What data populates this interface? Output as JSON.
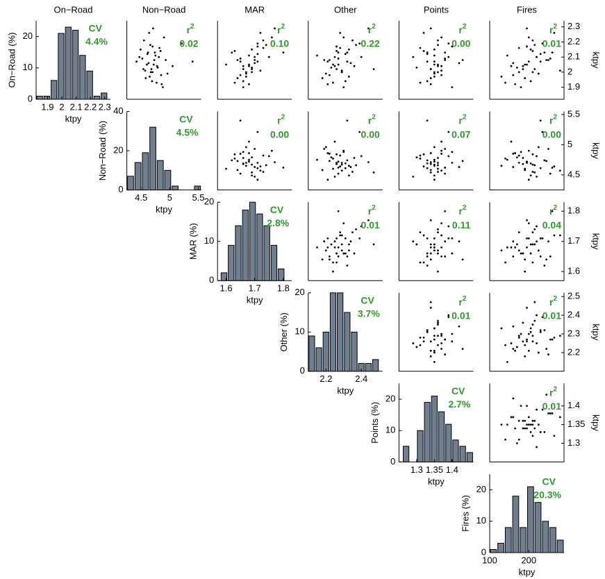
{
  "chart_data": {
    "type": "scatter-matrix",
    "x_label": "ktpy",
    "y_label": "ktpy",
    "cv_label": "CV",
    "stat_label": "r",
    "stat_sup": "2",
    "bar_color": "#6f7f90",
    "stat_color": "#2e9a2a",
    "point_color": "#000000",
    "variables": [
      {
        "name": "On−Road",
        "hist_ylabel": "On−Road (%)",
        "lim": [
          1.82,
          2.34
        ],
        "xticks": [
          1.9,
          2,
          2.1,
          2.2,
          2.3
        ],
        "yticks": [
          1.9,
          2,
          2.1,
          2.2,
          2.3
        ],
        "bins": [
          1.82,
          1.87,
          1.92,
          1.97,
          2.02,
          2.07,
          2.12,
          2.17,
          2.22,
          2.27,
          2.32
        ],
        "counts": [
          1,
          1,
          6,
          21,
          23,
          22,
          14,
          9,
          1,
          2
        ],
        "hist_ylim": [
          0,
          25
        ],
        "hist_yticks": [
          0,
          10,
          20
        ],
        "cv": 4.4,
        "cv_text": "4.4%",
        "r2": [
          0.02,
          0.1,
          0.22,
          0.0,
          0.01
        ],
        "r2_labels": [
          "0.02",
          "0.10",
          "0.22",
          "0.00",
          "0.01"
        ]
      },
      {
        "name": "Non−Road",
        "hist_ylabel": "Non−Road (%)",
        "lim": [
          4.25,
          5.55
        ],
        "xticks": [
          4.5,
          5,
          5.5
        ],
        "yticks": [
          4.5,
          5,
          5.5
        ],
        "bins": [
          4.25,
          4.38,
          4.51,
          4.64,
          4.77,
          4.9,
          5.03,
          5.16,
          5.29,
          5.42,
          5.55
        ],
        "counts": [
          7,
          14,
          19,
          32,
          15,
          10,
          2,
          0,
          0,
          2
        ],
        "hist_ylim": [
          0,
          40
        ],
        "hist_yticks": [
          0,
          20,
          40
        ],
        "cv": 4.5,
        "cv_text": "4.5%",
        "r2": [
          0.0,
          0.0,
          0.07,
          0.0
        ],
        "r2_labels": [
          "0.00",
          "0.00",
          "0.07",
          "0.00"
        ]
      },
      {
        "name": "MAR",
        "hist_ylabel": "MAR (%)",
        "lim": [
          1.57,
          1.83
        ],
        "xticks": [
          1.6,
          1.7,
          1.8
        ],
        "yticks": [
          1.6,
          1.7,
          1.8
        ],
        "bins": [
          1.58,
          1.605,
          1.63,
          1.655,
          1.68,
          1.705,
          1.73,
          1.755,
          1.78,
          1.805
        ],
        "counts": [
          2,
          9,
          14,
          18,
          20,
          17,
          14,
          9,
          3
        ],
        "hist_ylim": [
          0,
          20
        ],
        "hist_yticks": [
          0,
          10,
          20
        ],
        "cv": 2.8,
        "cv_text": "2.8%",
        "r2": [
          0.01,
          0.11,
          0.04
        ],
        "r2_labels": [
          "0.01",
          "0.11",
          "0.04"
        ]
      },
      {
        "name": "Other",
        "hist_ylabel": "Other (%)",
        "lim": [
          2.1,
          2.52
        ],
        "xticks": [
          2.2,
          2.4
        ],
        "yticks": [
          2.2,
          2.3,
          2.4,
          2.5
        ],
        "bins": [
          2.1,
          2.14,
          2.18,
          2.22,
          2.26,
          2.3,
          2.34,
          2.38,
          2.42,
          2.46,
          2.5
        ],
        "counts": [
          9,
          6,
          10,
          20,
          20,
          15,
          10,
          2,
          2,
          3
        ],
        "hist_ylim": [
          0,
          20
        ],
        "hist_yticks": [
          0,
          10,
          20
        ],
        "cv": 3.7,
        "cv_text": "3.7%",
        "r2": [
          0.01,
          0.01
        ],
        "r2_labels": [
          "0.01",
          "0.01"
        ]
      },
      {
        "name": "Points",
        "hist_ylabel": "Points (%)",
        "lim": [
          1.25,
          1.46
        ],
        "xticks": [
          1.3,
          1.35,
          1.4
        ],
        "yticks": [
          1.3,
          1.35,
          1.4
        ],
        "bins": [
          1.26,
          1.28,
          1.3,
          1.32,
          1.34,
          1.36,
          1.38,
          1.4,
          1.42,
          1.44,
          1.46
        ],
        "counts": [
          5,
          0,
          10,
          19,
          21,
          16,
          12,
          7,
          5,
          3
        ],
        "hist_ylim": [
          0,
          25
        ],
        "hist_yticks": [
          0,
          10,
          20
        ],
        "cv": 2.7,
        "cv_text": "2.7%",
        "r2": [
          0.01
        ],
        "r2_labels": [
          "0.01"
        ]
      },
      {
        "name": "Fires",
        "hist_ylabel": "Fires (%)",
        "lim": [
          100,
          290
        ],
        "xticks": [
          100,
          200
        ],
        "bins": [
          100,
          119,
          138,
          157,
          176,
          195,
          214,
          233,
          252,
          271,
          290
        ],
        "counts": [
          1,
          3,
          8,
          18,
          8,
          21,
          16,
          10,
          8,
          4
        ],
        "hist_ylim": [
          0,
          25
        ],
        "hist_yticks": [
          0,
          10,
          20
        ],
        "cv": 20.3,
        "cv_text": "20.3%"
      }
    ],
    "samples": [
      [
        2.05,
        4.72,
        1.68,
        2.27,
        1.35,
        195
      ],
      [
        2.12,
        4.61,
        1.71,
        2.31,
        1.33,
        230
      ],
      [
        1.98,
        4.85,
        1.65,
        2.22,
        1.37,
        160
      ],
      [
        2.21,
        4.55,
        1.73,
        2.35,
        1.36,
        210
      ],
      [
        2.02,
        4.68,
        1.66,
        2.26,
        1.34,
        185
      ],
      [
        2.08,
        4.93,
        1.7,
        2.19,
        1.38,
        250
      ],
      [
        1.93,
        4.77,
        1.63,
        2.24,
        1.31,
        140
      ],
      [
        2.15,
        4.49,
        1.69,
        2.33,
        1.35,
        205
      ],
      [
        2.0,
        4.7,
        1.67,
        2.29,
        1.36,
        175
      ],
      [
        2.1,
        4.81,
        1.75,
        2.4,
        1.39,
        220
      ],
      [
        2.26,
        4.64,
        1.72,
        2.28,
        1.32,
        265
      ],
      [
        1.96,
        4.58,
        1.64,
        2.18,
        1.34,
        190
      ],
      [
        2.04,
        5.05,
        1.68,
        2.25,
        1.37,
        155
      ],
      [
        2.13,
        4.74,
        1.62,
        2.32,
        1.33,
        240
      ],
      [
        2.07,
        4.42,
        1.71,
        2.21,
        1.35,
        200
      ],
      [
        1.9,
        4.88,
        1.66,
        2.3,
        1.4,
        180
      ],
      [
        2.18,
        4.66,
        1.74,
        2.37,
        1.36,
        215
      ],
      [
        2.03,
        4.79,
        1.69,
        2.23,
        1.3,
        170
      ],
      [
        2.09,
        4.52,
        1.65,
        2.27,
        1.38,
        255
      ],
      [
        2.29,
        4.71,
        1.77,
        2.44,
        1.34,
        195
      ],
      [
        1.99,
        4.96,
        1.67,
        2.2,
        1.35,
        225
      ],
      [
        2.06,
        4.63,
        1.7,
        2.34,
        1.42,
        160
      ],
      [
        2.14,
        4.84,
        1.63,
        2.26,
        1.32,
        210
      ],
      [
        2.01,
        4.57,
        1.72,
        2.29,
        1.37,
        280
      ],
      [
        2.11,
        4.75,
        1.68,
        2.15,
        1.35,
        145
      ],
      [
        1.94,
        4.69,
        1.66,
        2.31,
        1.33,
        205
      ],
      [
        2.19,
        5.21,
        1.71,
        2.39,
        1.39,
        235
      ],
      [
        2.05,
        4.6,
        1.6,
        2.24,
        1.36,
        190
      ],
      [
        2.16,
        4.82,
        1.73,
        2.28,
        1.31,
        175
      ],
      [
        2.02,
        4.54,
        1.69,
        2.47,
        1.34,
        215
      ],
      [
        2.08,
        4.73,
        1.64,
        2.22,
        1.43,
        245
      ],
      [
        1.97,
        4.65,
        1.67,
        2.33,
        1.35,
        130
      ],
      [
        2.23,
        4.9,
        1.76,
        2.3,
        1.37,
        200
      ],
      [
        2.1,
        4.47,
        1.7,
        2.25,
        1.29,
        220
      ],
      [
        2.04,
        4.78,
        1.66,
        2.36,
        1.36,
        185
      ],
      [
        2.13,
        4.62,
        1.8,
        2.27,
        1.38,
        260
      ],
      [
        1.92,
        4.86,
        1.68,
        2.21,
        1.34,
        165
      ],
      [
        2.07,
        5.4,
        1.65,
        2.32,
        1.33,
        230
      ],
      [
        2.17,
        4.7,
        1.71,
        2.26,
        1.4,
        195
      ],
      [
        2.0,
        4.67,
        1.69,
        2.29,
        1.35,
        210
      ]
    ]
  }
}
